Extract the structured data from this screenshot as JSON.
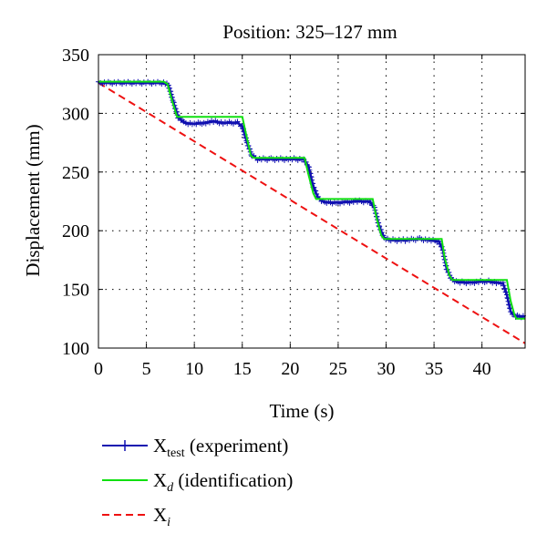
{
  "chart_data": {
    "type": "line",
    "title": "Position: 325–127 mm",
    "xlabel": "Time (s)",
    "ylabel": "Displacement (mm)",
    "xlim": [
      0,
      44.5
    ],
    "ylim": [
      100,
      350
    ],
    "xticks": [
      0,
      5,
      10,
      15,
      20,
      25,
      30,
      35,
      40
    ],
    "yticks": [
      100,
      150,
      200,
      250,
      300,
      350
    ],
    "grid": true,
    "legend": {
      "placement": "below",
      "entries": [
        {
          "base": "X",
          "sub": "test",
          "note": "(experiment)"
        },
        {
          "base": "X",
          "sub": "d",
          "note": "(identification)"
        },
        {
          "base": "X",
          "sub": "i",
          "note": ""
        }
      ]
    },
    "series": [
      {
        "key": "test",
        "color": "#1010b0",
        "style": "solid-with-plus-markers",
        "points": [
          [
            0,
            326
          ],
          [
            6.8,
            326
          ],
          [
            7.3,
            324
          ],
          [
            7.8,
            310
          ],
          [
            8.3,
            297
          ],
          [
            8.9,
            292
          ],
          [
            10,
            291
          ],
          [
            11,
            292
          ],
          [
            12,
            293
          ],
          [
            13,
            292
          ],
          [
            14.5,
            292
          ],
          [
            15.0,
            289
          ],
          [
            15.5,
            275
          ],
          [
            16.0,
            264
          ],
          [
            16.6,
            261
          ],
          [
            18,
            261
          ],
          [
            20,
            261
          ],
          [
            21.4,
            261
          ],
          [
            21.9,
            255
          ],
          [
            22.4,
            238
          ],
          [
            22.9,
            228
          ],
          [
            23.6,
            224
          ],
          [
            25,
            224
          ],
          [
            27,
            225
          ],
          [
            28.3,
            225
          ],
          [
            28.8,
            219
          ],
          [
            29.3,
            203
          ],
          [
            29.8,
            194
          ],
          [
            30.5,
            192
          ],
          [
            32,
            192
          ],
          [
            33.5,
            193
          ],
          [
            34.5,
            192
          ],
          [
            35.5,
            191
          ],
          [
            35.9,
            184
          ],
          [
            36.3,
            168
          ],
          [
            36.8,
            159
          ],
          [
            37.5,
            156
          ],
          [
            39,
            156
          ],
          [
            40.5,
            157
          ],
          [
            41.5,
            156
          ],
          [
            42.2,
            155
          ],
          [
            42.6,
            145
          ],
          [
            43.0,
            131
          ],
          [
            43.5,
            127
          ],
          [
            44.5,
            127
          ]
        ]
      },
      {
        "key": "identification",
        "color": "#10e010",
        "style": "solid",
        "points": [
          [
            0,
            327
          ],
          [
            6.8,
            327
          ],
          [
            7.2,
            325
          ],
          [
            7.7,
            310
          ],
          [
            8.2,
            297
          ],
          [
            15.0,
            297
          ],
          [
            15.4,
            282
          ],
          [
            15.9,
            264
          ],
          [
            16.2,
            262
          ],
          [
            21.5,
            262
          ],
          [
            21.9,
            248
          ],
          [
            22.4,
            232
          ],
          [
            22.7,
            227
          ],
          [
            28.6,
            227
          ],
          [
            29.0,
            211
          ],
          [
            29.5,
            196
          ],
          [
            29.8,
            193
          ],
          [
            35.8,
            193
          ],
          [
            36.1,
            177
          ],
          [
            36.6,
            162
          ],
          [
            36.9,
            158
          ],
          [
            42.6,
            158
          ],
          [
            43.0,
            140
          ],
          [
            43.4,
            128
          ],
          [
            43.6,
            125
          ],
          [
            44.5,
            125
          ]
        ]
      },
      {
        "key": "ideal",
        "color": "#ee1111",
        "style": "dashed",
        "points": [
          [
            0,
            326
          ],
          [
            44.5,
            104
          ]
        ]
      }
    ]
  }
}
